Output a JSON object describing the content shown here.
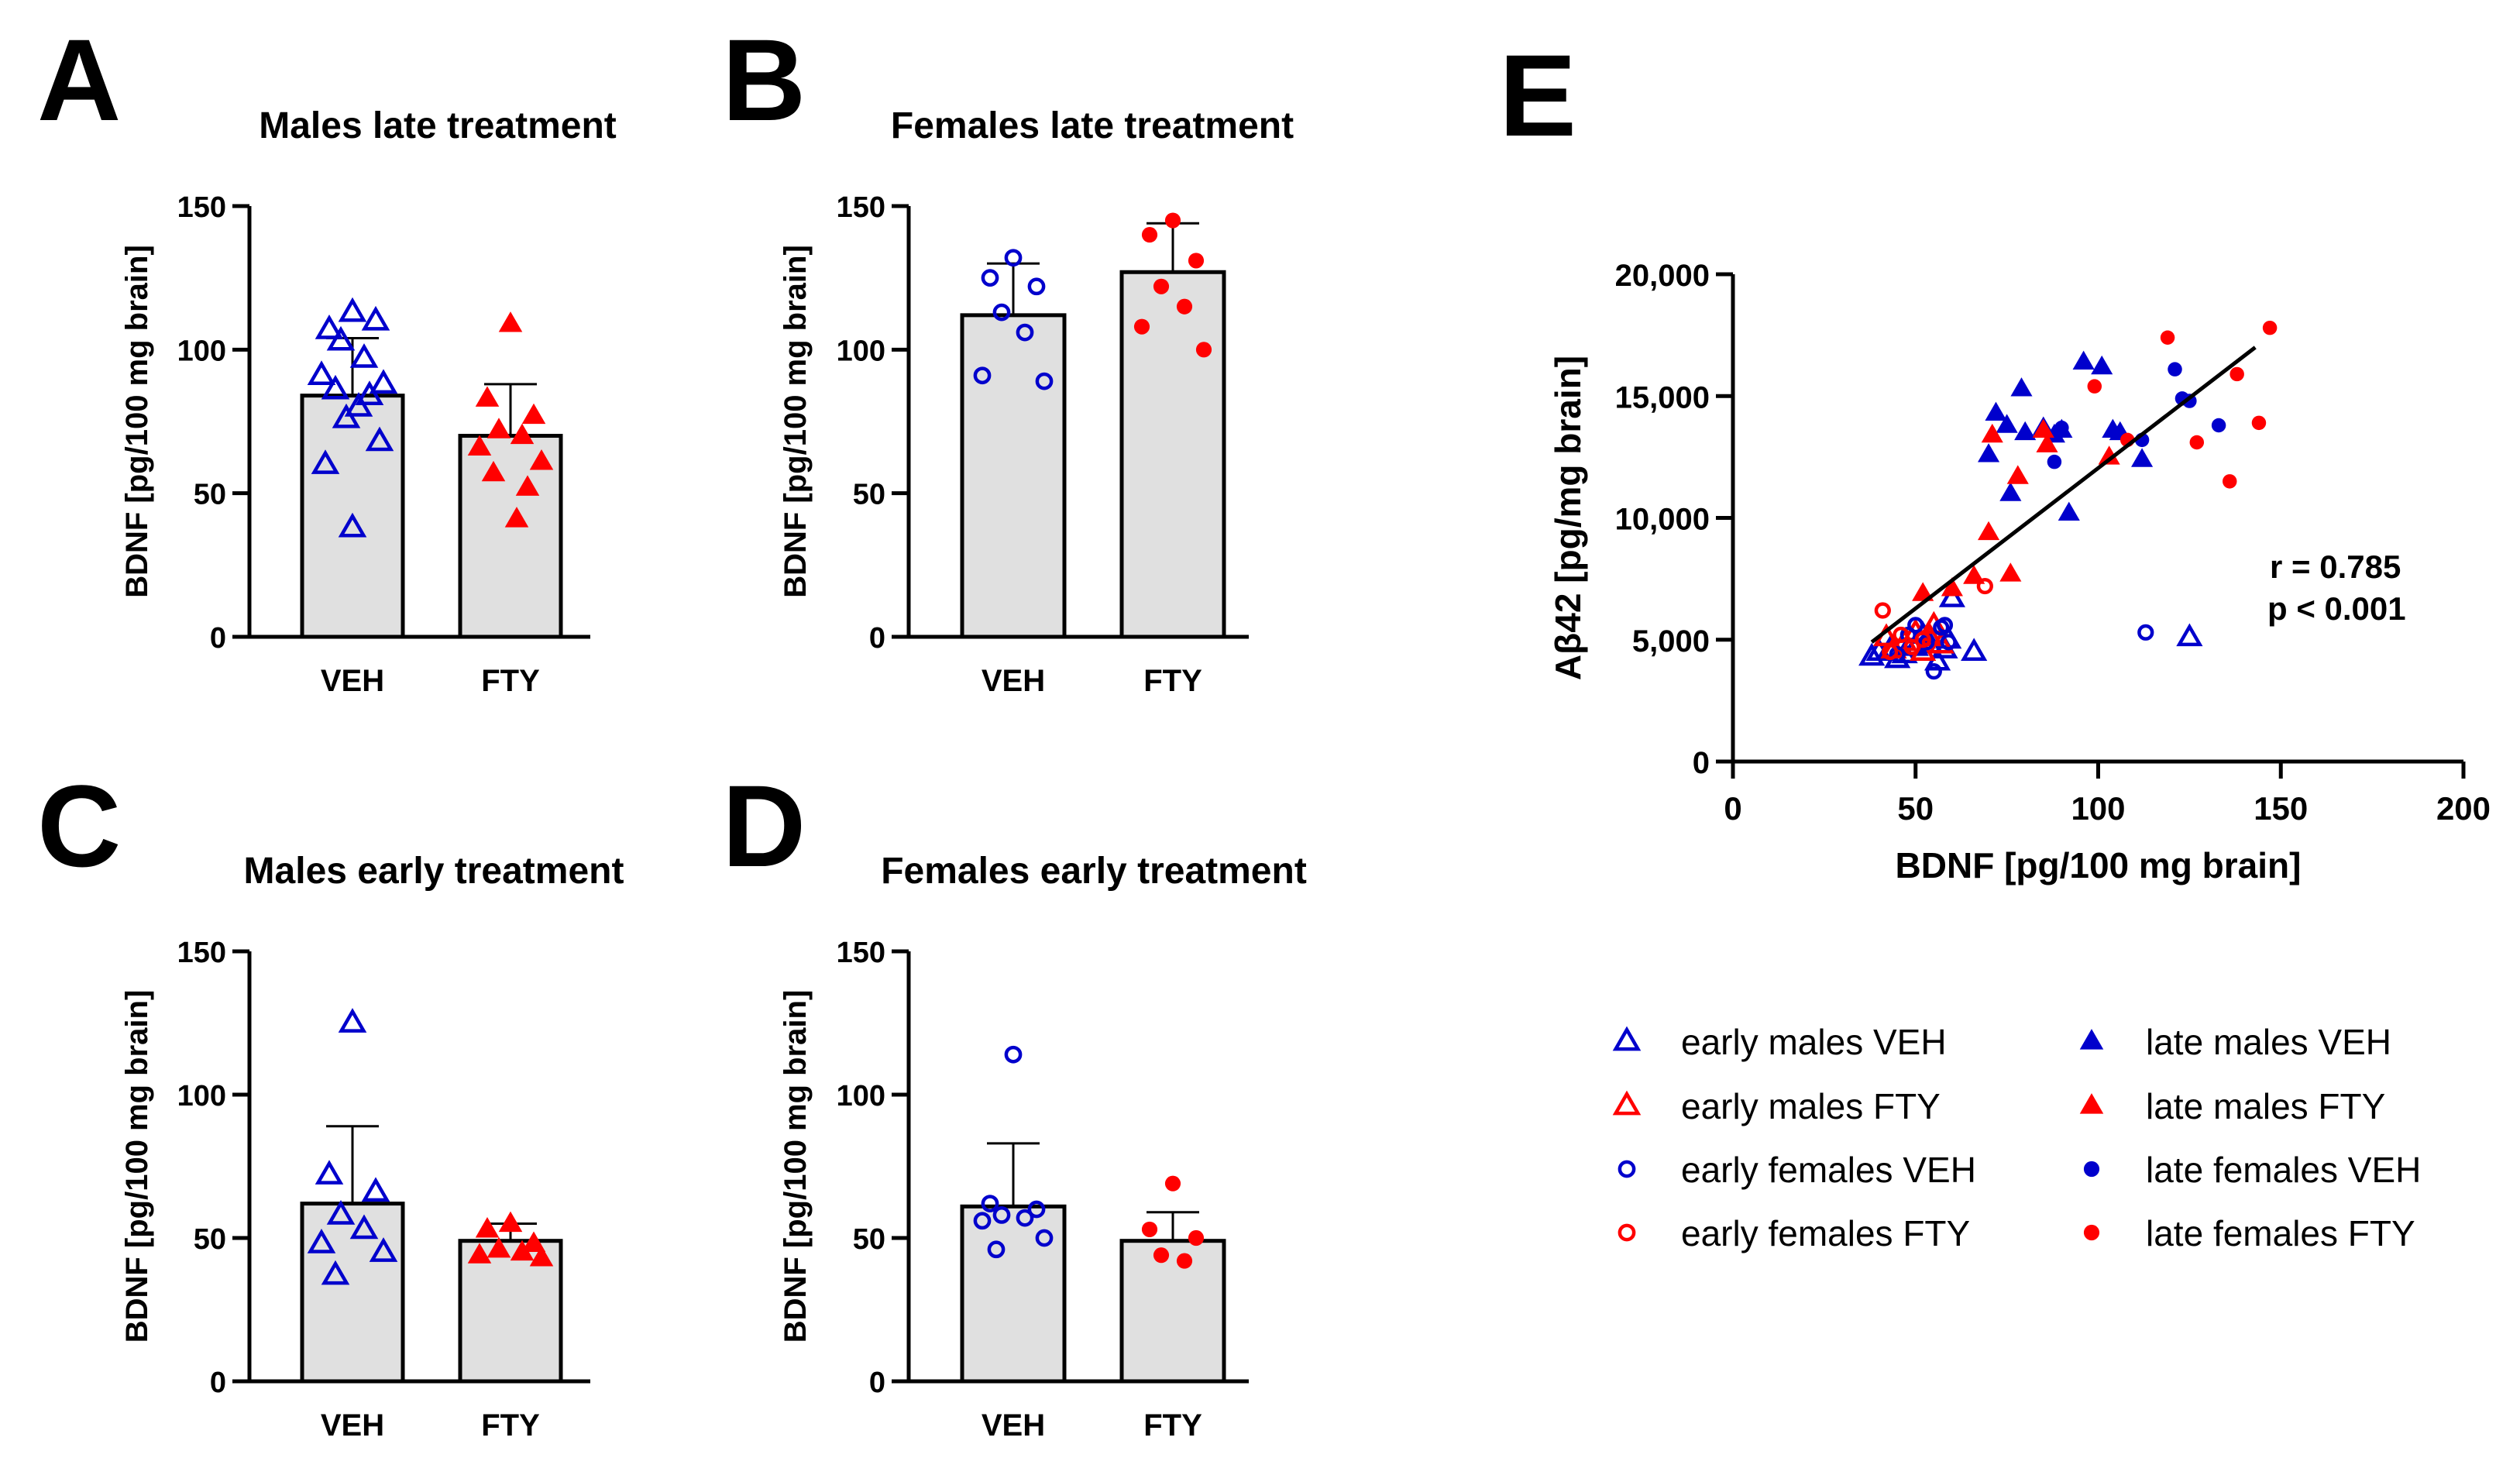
{
  "colors": {
    "veh": "#0000cc",
    "fty": "#ff0000",
    "bar_fill": "#e0e0e0",
    "axis": "#000000"
  },
  "chart_data": [
    {
      "id": "A",
      "panel_label": "A",
      "type": "bar",
      "title": "Males late treatment",
      "ylabel": "BDNF [pg/100 mg brain]",
      "ylim": [
        0,
        150
      ],
      "yticks": [
        "0",
        "50",
        "100",
        "150"
      ],
      "categories": [
        "VEH",
        "FTY"
      ],
      "values": [
        84,
        70
      ],
      "errors": [
        20,
        18
      ],
      "points": [
        [
          113,
          107,
          110,
          103,
          97,
          91,
          88,
          86,
          84,
          80,
          76,
          68,
          60,
          38
        ],
        [
          109,
          83,
          77,
          72,
          70,
          66,
          61,
          57,
          52,
          41
        ]
      ],
      "markers": [
        "open-triangle",
        "filled-triangle"
      ]
    },
    {
      "id": "B",
      "panel_label": "B",
      "type": "bar",
      "title": "Females late treatment",
      "ylabel": "BDNF [pg/100 mg brain]",
      "ylim": [
        0,
        150
      ],
      "yticks": [
        "0",
        "50",
        "100",
        "150"
      ],
      "categories": [
        "VEH",
        "FTY"
      ],
      "values": [
        112,
        127
      ],
      "errors": [
        18,
        17
      ],
      "points": [
        [
          132,
          125,
          122,
          113,
          106,
          91,
          89
        ],
        [
          145,
          140,
          131,
          122,
          115,
          108,
          100
        ]
      ],
      "markers": [
        "open-circle",
        "filled-circle"
      ]
    },
    {
      "id": "C",
      "panel_label": "C",
      "type": "bar",
      "title": "Males early treatment",
      "ylabel": "BDNF [pg/100 mg brain]",
      "ylim": [
        0,
        150
      ],
      "yticks": [
        "0",
        "50",
        "100",
        "150"
      ],
      "categories": [
        "VEH",
        "FTY"
      ],
      "values": [
        62,
        49
      ],
      "errors": [
        27,
        6
      ],
      "points": [
        [
          125,
          72,
          66,
          58,
          53,
          48,
          45,
          37
        ],
        [
          55,
          53,
          48,
          46,
          45,
          44,
          43
        ]
      ],
      "markers": [
        "open-triangle",
        "filled-triangle"
      ]
    },
    {
      "id": "D",
      "panel_label": "D",
      "type": "bar",
      "title": "Females early treatment",
      "ylabel": "BDNF [pg/100 mg brain]",
      "ylim": [
        0,
        150
      ],
      "yticks": [
        "0",
        "50",
        "100",
        "150"
      ],
      "categories": [
        "VEH",
        "FTY"
      ],
      "values": [
        61,
        49
      ],
      "errors": [
        22,
        10
      ],
      "points": [
        [
          114,
          62,
          60,
          58,
          57,
          56,
          50,
          46
        ],
        [
          69,
          53,
          50,
          44,
          42
        ]
      ],
      "markers": [
        "open-circle",
        "filled-circle"
      ]
    },
    {
      "id": "E",
      "panel_label": "E",
      "type": "scatter",
      "xlabel": "BDNF [pg/100 mg brain]",
      "ylabel": "Aβ42 [pg/mg brain]",
      "xlim": [
        0,
        200
      ],
      "ylim": [
        0,
        20000
      ],
      "xticks": [
        "0",
        "50",
        "100",
        "150",
        "200"
      ],
      "yticks": [
        "0",
        "5,000",
        "10,000",
        "15,000",
        "20,000"
      ],
      "annotation_r": "r = 0.785",
      "annotation_p": "p < 0.001",
      "fit_line": [
        [
          38,
          4900
        ],
        [
          143,
          17000
        ]
      ],
      "series": [
        {
          "name": "early males VEH",
          "marker": "open-triangle",
          "color": "veh",
          "points": [
            [
              38,
              4300
            ],
            [
              40,
              4500
            ],
            [
              43,
              4600
            ],
            [
              45,
              4200
            ],
            [
              47,
              4400
            ],
            [
              50,
              4700
            ],
            [
              52,
              5200
            ],
            [
              54,
              4800
            ],
            [
              56,
              4100
            ],
            [
              58,
              4600
            ],
            [
              59,
              5000
            ],
            [
              60,
              6700
            ],
            [
              66,
              4500
            ],
            [
              125,
              5100
            ]
          ]
        },
        {
          "name": "early males FTY",
          "marker": "open-triangle",
          "color": "fty",
          "points": [
            [
              42,
              5100
            ],
            [
              44,
              4600
            ],
            [
              47,
              4900
            ],
            [
              50,
              5300
            ],
            [
              52,
              4500
            ],
            [
              54,
              5100
            ],
            [
              55,
              5600
            ],
            [
              57,
              4800
            ]
          ]
        },
        {
          "name": "early females VEH",
          "marker": "open-circle",
          "color": "veh",
          "points": [
            [
              45,
              4400
            ],
            [
              48,
              5200
            ],
            [
              50,
              5600
            ],
            [
              53,
              4900
            ],
            [
              55,
              3700
            ],
            [
              57,
              5500
            ],
            [
              58,
              5600
            ],
            [
              59,
              4900
            ],
            [
              113,
              5300
            ]
          ]
        },
        {
          "name": "early females FTY",
          "marker": "open-circle",
          "color": "fty",
          "points": [
            [
              41,
              6200
            ],
            [
              43,
              4500
            ],
            [
              46,
              5200
            ],
            [
              49,
              4700
            ],
            [
              52,
              5000
            ],
            [
              69,
              7200
            ]
          ]
        },
        {
          "name": "late males VEH",
          "marker": "filled-triangle",
          "color": "veh",
          "points": [
            [
              70,
              12600
            ],
            [
              72,
              14300
            ],
            [
              75,
              13800
            ],
            [
              76,
              11000
            ],
            [
              79,
              15300
            ],
            [
              80,
              13500
            ],
            [
              85,
              13700
            ],
            [
              88,
              13400
            ],
            [
              90,
              13600
            ],
            [
              92,
              10200
            ],
            [
              96,
              16400
            ],
            [
              101,
              16200
            ],
            [
              104,
              13600
            ],
            [
              106,
              13500
            ],
            [
              112,
              12400
            ]
          ]
        },
        {
          "name": "late males FTY",
          "marker": "filled-triangle",
          "color": "fty",
          "points": [
            [
              52,
              6900
            ],
            [
              60,
              7100
            ],
            [
              66,
              7600
            ],
            [
              70,
              9400
            ],
            [
              71,
              13400
            ],
            [
              76,
              7700
            ],
            [
              78,
              11700
            ],
            [
              85,
              13600
            ],
            [
              86,
              13000
            ],
            [
              103,
              12500
            ]
          ]
        },
        {
          "name": "late females VEH",
          "marker": "filled-circle",
          "color": "veh",
          "points": [
            [
              88,
              12300
            ],
            [
              90,
              13700
            ],
            [
              112,
              13200
            ],
            [
              121,
              16100
            ],
            [
              123,
              14900
            ],
            [
              125,
              14800
            ],
            [
              133,
              13800
            ]
          ]
        },
        {
          "name": "late females FTY",
          "marker": "filled-circle",
          "color": "fty",
          "points": [
            [
              99,
              15400
            ],
            [
              108,
              13200
            ],
            [
              119,
              17400
            ],
            [
              127,
              13100
            ],
            [
              136,
              11500
            ],
            [
              138,
              15900
            ],
            [
              144,
              13900
            ],
            [
              147,
              17800
            ]
          ]
        }
      ]
    }
  ]
}
